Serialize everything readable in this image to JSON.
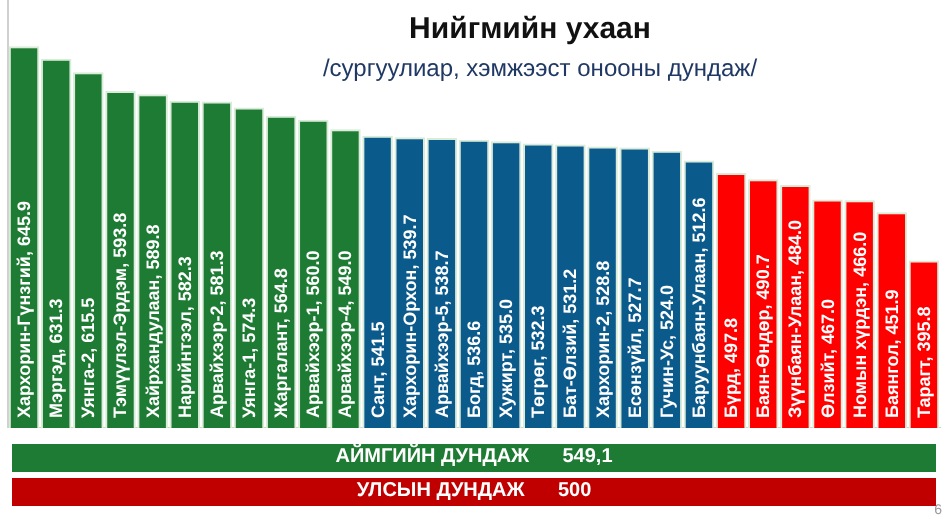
{
  "chart_data": {
    "type": "bar",
    "title": "Нийгмийн ухаан",
    "subtitle": "/сургуулиар, хэмжээст онооны дундаж/",
    "categories": [
      null,
      null,
      null,
      null,
      null,
      null,
      null,
      null,
      null,
      null,
      null,
      null,
      null,
      null,
      null,
      null,
      null,
      null,
      null,
      null,
      null,
      null,
      null,
      null,
      null,
      null,
      null,
      null,
      null
    ],
    "values": [
      645.9,
      631.3,
      615.5,
      593.8,
      589.8,
      582.3,
      581.3,
      574.3,
      564.8,
      560.0,
      549.0,
      541.5,
      539.7,
      538.7,
      536.6,
      535.0,
      532.3,
      531.2,
      528.8,
      527.7,
      524.0,
      512.6,
      497.8,
      490.7,
      484.0,
      467.0,
      466.0,
      451.9,
      395.8
    ],
    "value_labels": [
      "Хархорин-Гүнзгий, 645.9",
      "Мэргэд, 631.3",
      "Уянга-2, 615.5",
      "Тэмүүлэл-Эрдэм, 593.8",
      "Хайрхандулаан, 589.8",
      "Нарийнтээл, 582.3",
      "Арвайхээр-2, 581.3",
      "Уянга-1, 574.3",
      "Жаргалант, 564.8",
      "Арвайхээр-1, 560.0",
      "Арвайхээр-4, 549.0",
      "Сант, 541.5",
      "Хархорин-Орхон, 539.7",
      "Арвайхээр-5, 538.7",
      "Богд, 536.6",
      "Хужирт, 535.0",
      "Төгрөг, 532.3",
      "Бат-Өлзий, 531.2",
      "Хархорин-2, 528.8",
      "Есөнзүйл, 527.7",
      "Гучин-Ус, 524.0",
      "Баруунбаян-Улаан, 512.6",
      "Бүрд, 497.8",
      "Баян-Өндөр, 490.7",
      "Зүүнбаян-Улаан, 484.0",
      "Өлзийт, 467.0",
      "Номын хүрдэн, 466.0",
      "Баянгол, 451.9",
      "Тарагт, 395.8"
    ],
    "colors": [
      "#1e7b34",
      "#1e7b34",
      "#1e7b34",
      "#1e7b34",
      "#1e7b34",
      "#1e7b34",
      "#1e7b34",
      "#1e7b34",
      "#1e7b34",
      "#1e7b34",
      "#1e7b34",
      "#0b5a8c",
      "#0b5a8c",
      "#0b5a8c",
      "#0b5a8c",
      "#0b5a8c",
      "#0b5a8c",
      "#0b5a8c",
      "#0b5a8c",
      "#0b5a8c",
      "#0b5a8c",
      "#0b5a8c",
      "#ff0000",
      "#ff0000",
      "#ff0000",
      "#ff0000",
      "#ff0000",
      "#ff0000",
      "#ff0000"
    ],
    "ylim": [
      200,
      700
    ],
    "tick_labels": false,
    "grid": false,
    "legend": false,
    "annotations": [
      "АЙМГИЙН ДУНДАЖ      549,1",
      "УЛСЫН ДУНДАЖ      500",
      "6"
    ]
  }
}
